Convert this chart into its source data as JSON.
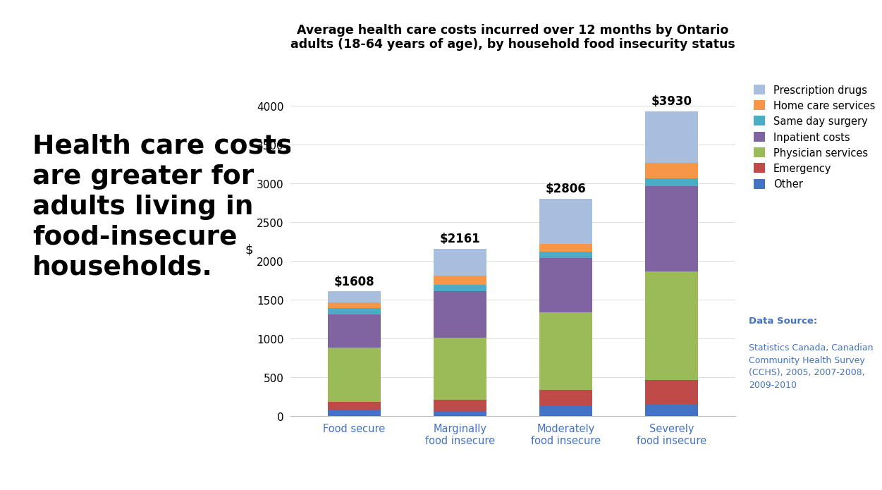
{
  "categories": [
    "Food secure",
    "Marginally\nfood insecure",
    "Moderately\nfood insecure",
    "Severely\nfood insecure"
  ],
  "totals_labels": [
    "$1608",
    "$2161",
    "$2806",
    "$3930"
  ],
  "totals_vals": [
    1608,
    2161,
    2806,
    3930
  ],
  "segments": {
    "Other": [
      75,
      65,
      130,
      160
    ],
    "Emergency": [
      110,
      145,
      210,
      310
    ],
    "Physician services": [
      700,
      800,
      1000,
      1400
    ],
    "Inpatient costs": [
      430,
      600,
      700,
      1100
    ],
    "Same day surgery": [
      80,
      80,
      80,
      100
    ],
    "Home care services": [
      70,
      120,
      100,
      200
    ],
    "Prescription drugs": [
      143,
      351,
      586,
      660
    ]
  },
  "colors": {
    "Other": "#4472C4",
    "Emergency": "#BE4B48",
    "Physician services": "#9BBB59",
    "Inpatient costs": "#8064A2",
    "Same day surgery": "#4BACC6",
    "Home care services": "#F79646",
    "Prescription drugs": "#A7BEDE"
  },
  "title_line1": "Average health care costs incurred over 12 months by Ontario",
  "title_line2": "adults (18-64 years of age), by household food insecurity status",
  "ylabel": "$",
  "ylim": [
    0,
    4300
  ],
  "yticks": [
    0,
    500,
    1000,
    1500,
    2000,
    2500,
    3000,
    3500,
    4000
  ],
  "left_text": "Health care costs\nare greater for\nadults living in\nfood-insecure\nhouseholds.",
  "data_source_bold": "Data Source:",
  "data_source_text": "Statistics Canada, Canadian\nCommunity Health Survey\n(CCHS), 2005, 2007-2008,\n2009-2010",
  "data_source_color": "#4472C4",
  "background_color": "#FFFFFF",
  "legend_order": [
    "Prescription drugs",
    "Home care services",
    "Same day surgery",
    "Inpatient costs",
    "Physician services",
    "Emergency",
    "Other"
  ]
}
